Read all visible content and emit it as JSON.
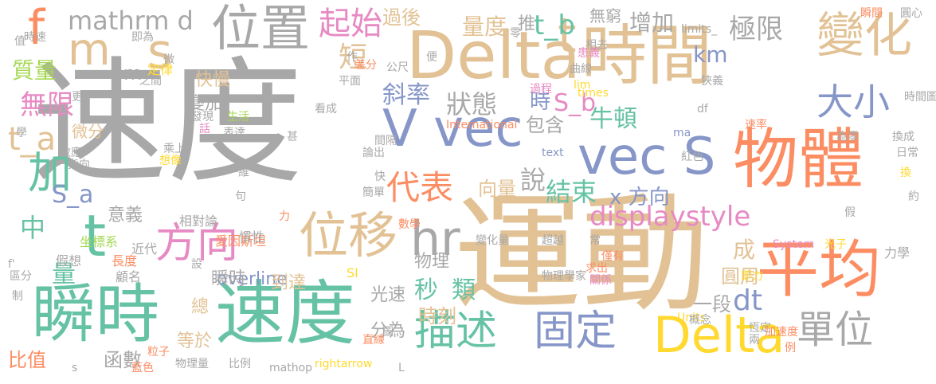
{
  "colors": {
    "gray": "#a8a8a8",
    "tan": "#e2c295",
    "blue": "#8696c8",
    "green": "#66c2a5",
    "pink": "#e78ac3",
    "orange": "#fc8d62",
    "yellow": "#ffd92f",
    "lime": "#a6d854"
  },
  "words": [
    {
      "text": "速度",
      "color": "gray"
    },
    {
      "text": "運動",
      "color": "tan"
    },
    {
      "text": "Delta",
      "color": "tan"
    },
    {
      "text": "時間",
      "color": "tan"
    },
    {
      "text": "物體",
      "color": "orange"
    },
    {
      "text": "速度",
      "color": "green"
    },
    {
      "text": "瞬時",
      "color": "green"
    },
    {
      "text": "平均",
      "color": "orange"
    },
    {
      "text": "位置",
      "color": "gray"
    },
    {
      "text": "位移",
      "color": "tan"
    },
    {
      "text": "描述",
      "color": "green"
    },
    {
      "text": "固定",
      "color": "blue"
    },
    {
      "text": "Delta",
      "color": "yellow"
    },
    {
      "text": "V vec",
      "color": "blue"
    },
    {
      "text": "vec S",
      "color": "blue"
    },
    {
      "text": "t",
      "color": "tan"
    },
    {
      "text": "方向",
      "color": "pink"
    },
    {
      "text": "t",
      "color": "green"
    },
    {
      "text": "f",
      "color": "orange"
    },
    {
      "text": "m",
      "color": "tan"
    },
    {
      "text": "s",
      "color": "tan"
    },
    {
      "text": "變化",
      "color": "tan"
    },
    {
      "text": "大小",
      "color": "blue"
    },
    {
      "text": "單位",
      "color": "gray"
    },
    {
      "text": "hr",
      "color": "gray"
    },
    {
      "text": "加",
      "color": "green"
    },
    {
      "text": "mathrm d",
      "color": "gray"
    },
    {
      "text": "起始",
      "color": "pink"
    },
    {
      "text": "無限",
      "color": "pink"
    },
    {
      "text": "代表",
      "color": "orange"
    },
    {
      "text": "說",
      "color": "gray"
    },
    {
      "text": "狀態",
      "color": "gray"
    },
    {
      "text": "短",
      "color": "tan"
    },
    {
      "text": "斜率",
      "color": "blue"
    },
    {
      "text": "極限",
      "color": "gray"
    },
    {
      "text": "km",
      "color": "blue"
    },
    {
      "text": "增加",
      "color": "gray"
    },
    {
      "text": "t_b",
      "color": "green"
    },
    {
      "text": "推",
      "color": "gray"
    },
    {
      "text": "量度",
      "color": "tan"
    },
    {
      "text": "過後",
      "color": "tan"
    },
    {
      "text": "無窮",
      "color": "gray"
    },
    {
      "text": "displaystyle",
      "color": "pink"
    },
    {
      "text": "秒",
      "color": "green"
    },
    {
      "text": "類",
      "color": "green"
    },
    {
      "text": "結束",
      "color": "green"
    },
    {
      "text": "x 方向",
      "color": "blue"
    },
    {
      "text": "牛頓",
      "color": "green"
    },
    {
      "text": "時",
      "color": "blue"
    },
    {
      "text": "S_b",
      "color": "pink"
    },
    {
      "text": "包含",
      "color": "gray"
    },
    {
      "text": "向量",
      "color": "tan"
    },
    {
      "text": "dt",
      "color": "blue"
    },
    {
      "text": "成",
      "color": "tan"
    },
    {
      "text": "圓周",
      "color": "tan"
    },
    {
      "text": "一段",
      "color": "gray"
    },
    {
      "text": "時刻",
      "color": "tan"
    },
    {
      "text": "光速",
      "color": "gray"
    },
    {
      "text": "分為",
      "color": "gray"
    },
    {
      "text": "等於",
      "color": "tan"
    },
    {
      "text": "總",
      "color": "tan"
    },
    {
      "text": "函數",
      "color": "gray"
    },
    {
      "text": "比值",
      "color": "orange"
    },
    {
      "text": "質量",
      "color": "lime"
    },
    {
      "text": "S_a",
      "color": "blue"
    },
    {
      "text": "中",
      "color": "green"
    },
    {
      "text": "量",
      "color": "green"
    },
    {
      "text": "意義",
      "color": "gray"
    },
    {
      "text": "物理",
      "color": "gray"
    },
    {
      "text": "overline",
      "color": "blue"
    },
    {
      "text": "瞬時",
      "color": "gray"
    },
    {
      "text": "到達",
      "color": "tan"
    },
    {
      "text": "快慢",
      "color": "tan"
    },
    {
      "text": "變加",
      "color": "gray"
    },
    {
      "text": "t_a",
      "color": "tan"
    },
    {
      "text": "m",
      "color": "gray"
    },
    {
      "text": "微分",
      "color": "tan"
    },
    {
      "text": "定律",
      "color": "yellow"
    },
    {
      "text": "愛因斯坦",
      "color": "orange"
    },
    {
      "text": "相對論",
      "color": "gray"
    },
    {
      "text": "坐標系",
      "color": "lime"
    },
    {
      "text": "慣性",
      "color": "gray"
    },
    {
      "text": "近代",
      "color": "gray"
    },
    {
      "text": "假想",
      "color": "gray"
    },
    {
      "text": "長度",
      "color": "orange"
    },
    {
      "text": "顧名",
      "color": "gray"
    },
    {
      "text": "物理量",
      "color": "gray"
    },
    {
      "text": "比例",
      "color": "gray"
    },
    {
      "text": "藍色",
      "color": "orange"
    },
    {
      "text": "粒子",
      "color": "orange"
    },
    {
      "text": "mathop",
      "color": "gray"
    },
    {
      "text": "rightarrow",
      "color": "yellow"
    },
    {
      "text": "直線",
      "color": "orange"
    },
    {
      "text": "圖",
      "color": "gray"
    },
    {
      "text": "變化量",
      "color": "gray"
    },
    {
      "text": "超越",
      "color": "gray"
    },
    {
      "text": "物理學家",
      "color": "gray"
    },
    {
      "text": "恆定",
      "color": "gray"
    },
    {
      "text": "加速度",
      "color": "orange"
    },
    {
      "text": "即力",
      "color": "yellow"
    },
    {
      "text": "求出",
      "color": "orange"
    },
    {
      "text": "關係",
      "color": "pink"
    },
    {
      "text": "僅有",
      "color": "orange"
    },
    {
      "text": "常",
      "color": "gray"
    },
    {
      "text": "力學",
      "color": "gray"
    },
    {
      "text": "光子",
      "color": "yellow"
    },
    {
      "text": "System",
      "color": "pink"
    },
    {
      "text": "International",
      "color": "orange"
    },
    {
      "text": "Units",
      "color": "yellow"
    },
    {
      "text": "SI",
      "color": "yellow"
    },
    {
      "text": "數學",
      "color": "orange"
    },
    {
      "text": "簡單",
      "color": "gray"
    },
    {
      "text": "text",
      "color": "blue"
    },
    {
      "text": "ma",
      "color": "blue"
    },
    {
      "text": "df",
      "color": "gray"
    },
    {
      "text": "f'",
      "color": "gray"
    },
    {
      "text": "區分",
      "color": "gray"
    },
    {
      "text": "制",
      "color": "gray"
    },
    {
      "text": "值",
      "color": "gray"
    },
    {
      "text": "時速",
      "color": "gray"
    },
    {
      "text": "即為",
      "color": "gray"
    },
    {
      "text": "之間",
      "color": "gray"
    },
    {
      "text": "效應",
      "color": "gray"
    },
    {
      "text": "指向",
      "color": "gray"
    },
    {
      "text": "生活",
      "color": "lime"
    },
    {
      "text": "發現",
      "color": "gray"
    },
    {
      "text": "表達",
      "color": "gray"
    },
    {
      "text": "乘上",
      "color": "gray"
    },
    {
      "text": "想像",
      "color": "yellow"
    },
    {
      "text": "一維",
      "color": "gray"
    },
    {
      "text": "間隔",
      "color": "gray"
    },
    {
      "text": "論出",
      "color": "gray"
    },
    {
      "text": "看成",
      "color": "gray"
    },
    {
      "text": "平面",
      "color": "gray"
    },
    {
      "text": "差分",
      "color": "orange"
    },
    {
      "text": "公尺",
      "color": "gray"
    },
    {
      "text": "相去",
      "color": "gray"
    },
    {
      "text": "患義",
      "color": "pink"
    },
    {
      "text": "曲線",
      "color": "gray"
    },
    {
      "text": "過程",
      "color": "pink"
    },
    {
      "text": "times",
      "color": "yellow"
    },
    {
      "text": "lim",
      "color": "yellow"
    },
    {
      "text": "limits_",
      "color": "gray"
    },
    {
      "text": "瞬間",
      "color": "orange"
    },
    {
      "text": "圓心",
      "color": "gray"
    },
    {
      "text": "狹義",
      "color": "gray"
    },
    {
      "text": "時間圖",
      "color": "gray"
    },
    {
      "text": "速率",
      "color": "orange"
    },
    {
      "text": "為零",
      "color": "gray"
    },
    {
      "text": "換成",
      "color": "gray"
    },
    {
      "text": "日常",
      "color": "gray"
    },
    {
      "text": "換",
      "color": "yellow"
    },
    {
      "text": "約",
      "color": "gray"
    },
    {
      "text": "假",
      "color": "gray"
    },
    {
      "text": "紅色",
      "color": "gray"
    },
    {
      "text": "概念",
      "color": "gray"
    },
    {
      "text": "兩",
      "color": "gray"
    },
    {
      "text": "例",
      "color": "orange"
    },
    {
      "text": "句",
      "color": "gray"
    },
    {
      "text": "話",
      "color": "pink"
    },
    {
      "text": "甚",
      "color": "gray"
    },
    {
      "text": "學",
      "color": "gray"
    },
    {
      "text": "更",
      "color": "gray"
    },
    {
      "text": "微",
      "color": "gray"
    },
    {
      "text": "作",
      "color": "gray"
    },
    {
      "text": "零",
      "color": "gray"
    },
    {
      "text": "便",
      "color": "gray"
    },
    {
      "text": "設",
      "color": "gray"
    },
    {
      "text": "力",
      "color": "orange"
    },
    {
      "text": "快",
      "color": "gray"
    },
    {
      "text": "L",
      "color": "gray"
    },
    {
      "text": "s",
      "color": "gray"
    }
  ]
}
